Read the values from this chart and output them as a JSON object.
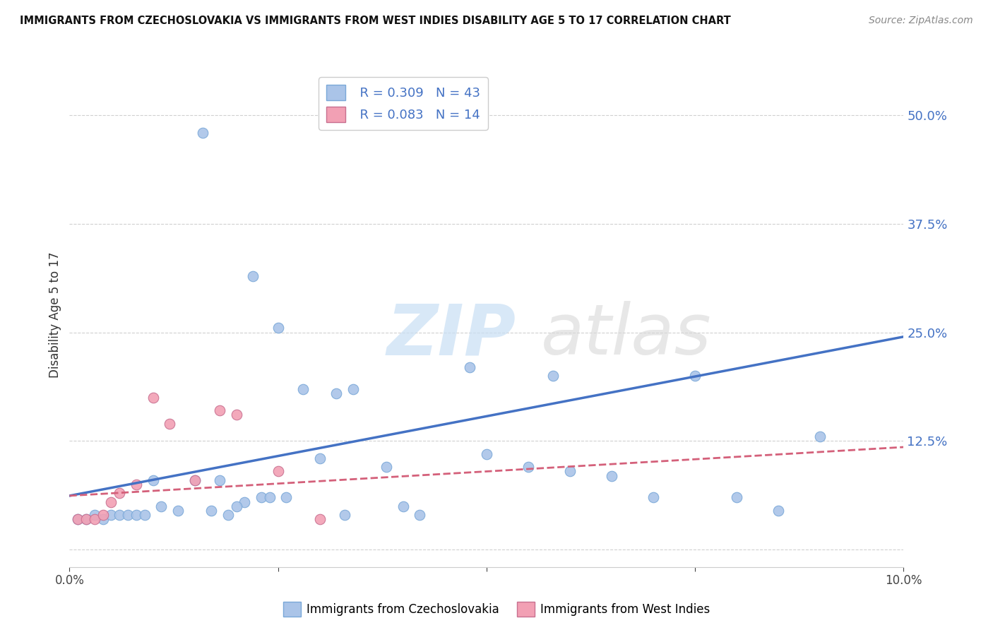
{
  "title": "IMMIGRANTS FROM CZECHOSLOVAKIA VS IMMIGRANTS FROM WEST INDIES DISABILITY AGE 5 TO 17 CORRELATION CHART",
  "source": "Source: ZipAtlas.com",
  "ylabel": "Disability Age 5 to 17",
  "ytick_values": [
    0.0,
    0.125,
    0.25,
    0.375,
    0.5
  ],
  "xlim": [
    0.0,
    0.1
  ],
  "ylim": [
    -0.02,
    0.56
  ],
  "blue_color": "#aac4e8",
  "pink_color": "#f2a0b4",
  "line_blue": "#4472c4",
  "line_pink": "#d4607a",
  "legend_color": "#4472c4",
  "blue_scatter_x": [
    0.016,
    0.022,
    0.003,
    0.004,
    0.005,
    0.006,
    0.002,
    0.001,
    0.007,
    0.008,
    0.009,
    0.011,
    0.013,
    0.017,
    0.019,
    0.021,
    0.02,
    0.023,
    0.025,
    0.028,
    0.03,
    0.032,
    0.034,
    0.038,
    0.04,
    0.042,
    0.05,
    0.055,
    0.06,
    0.065,
    0.07,
    0.075,
    0.08,
    0.085,
    0.09,
    0.048,
    0.024,
    0.026,
    0.033,
    0.058,
    0.018,
    0.015,
    0.01
  ],
  "blue_scatter_y": [
    0.48,
    0.315,
    0.04,
    0.035,
    0.04,
    0.04,
    0.035,
    0.035,
    0.04,
    0.04,
    0.04,
    0.05,
    0.045,
    0.045,
    0.04,
    0.055,
    0.05,
    0.06,
    0.255,
    0.185,
    0.105,
    0.18,
    0.185,
    0.095,
    0.05,
    0.04,
    0.11,
    0.095,
    0.09,
    0.085,
    0.06,
    0.2,
    0.06,
    0.045,
    0.13,
    0.21,
    0.06,
    0.06,
    0.04,
    0.2,
    0.08,
    0.08,
    0.08
  ],
  "pink_scatter_x": [
    0.001,
    0.002,
    0.003,
    0.004,
    0.005,
    0.006,
    0.008,
    0.01,
    0.012,
    0.015,
    0.018,
    0.02,
    0.025,
    0.03
  ],
  "pink_scatter_y": [
    0.035,
    0.035,
    0.035,
    0.04,
    0.055,
    0.065,
    0.075,
    0.175,
    0.145,
    0.08,
    0.16,
    0.155,
    0.09,
    0.035
  ],
  "blue_line_x": [
    0.0,
    0.1
  ],
  "blue_line_y": [
    0.062,
    0.245
  ],
  "pink_line_x": [
    0.0,
    0.1
  ],
  "pink_line_y": [
    0.062,
    0.118
  ],
  "grid_color": "#d0d0d0",
  "bg_color": "#ffffff",
  "axis_color": "#cccccc"
}
